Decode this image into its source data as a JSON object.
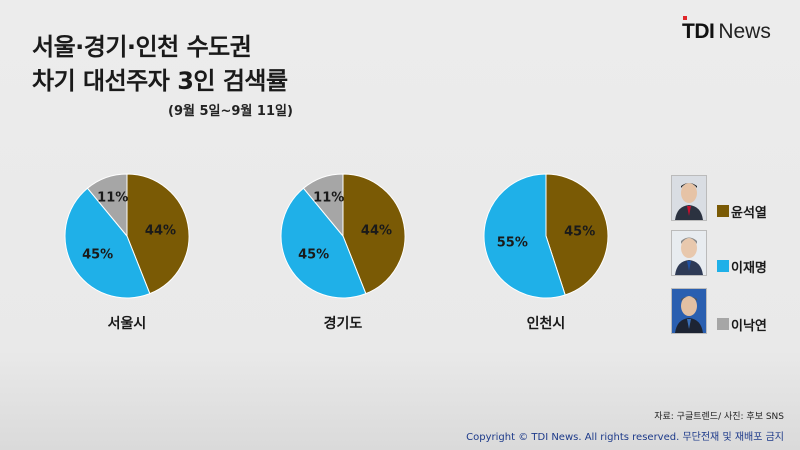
{
  "title_line1": "서울·경기·인천 수도권",
  "title_line2": "차기 대선주자 3인 검색률",
  "subtitle": "(9월 5일~9월 11일)",
  "logo": {
    "mark": "TDI",
    "word": "News"
  },
  "colors": {
    "yoon": "#7a5a05",
    "lee": "#1fb0e8",
    "nak": "#a6a6a6"
  },
  "legend": [
    {
      "name": "윤석열",
      "color": "#7a5a05",
      "icon": "candidate-photo"
    },
    {
      "name": "이재명",
      "color": "#1fb0e8",
      "icon": "candidate-photo"
    },
    {
      "name": "이낙연",
      "color": "#a6a6a6",
      "icon": "candidate-photo"
    }
  ],
  "chart_data": [
    {
      "type": "pie",
      "title": "서울시",
      "series": [
        {
          "name": "윤석열",
          "value": 44
        },
        {
          "name": "이재명",
          "value": 45
        },
        {
          "name": "이낙연",
          "value": 11
        }
      ]
    },
    {
      "type": "pie",
      "title": "경기도",
      "series": [
        {
          "name": "윤석열",
          "value": 44
        },
        {
          "name": "이재명",
          "value": 45
        },
        {
          "name": "이낙연",
          "value": 11
        }
      ]
    },
    {
      "type": "pie",
      "title": "인천시",
      "series": [
        {
          "name": "윤석열",
          "value": 45
        },
        {
          "name": "이재명",
          "value": 55
        }
      ]
    }
  ],
  "footer": {
    "source": "자료: 구글트렌드/ 사진: 후보 SNS",
    "copyright": "Copyright © TDI News. All rights reserved. 무단전재 및 재배포 금지"
  }
}
